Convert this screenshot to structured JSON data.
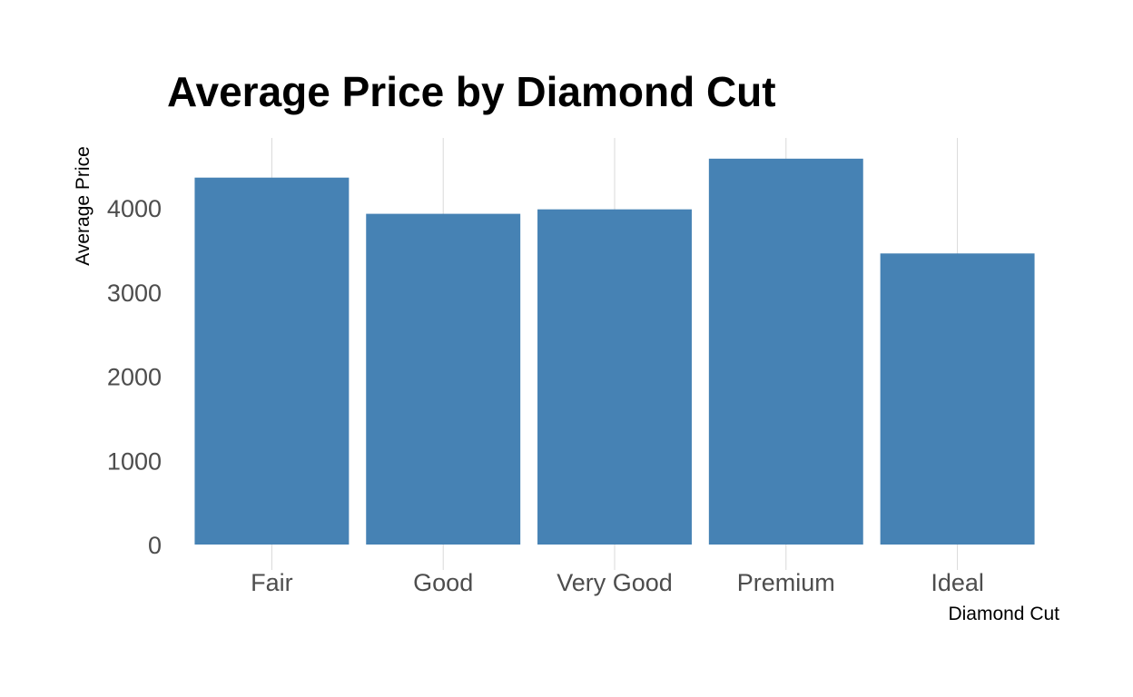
{
  "chart_data": {
    "type": "bar",
    "title": "Average Price by Diamond Cut",
    "xlabel": "Diamond Cut",
    "ylabel": "Average Price",
    "categories": [
      "Fair",
      "Good",
      "Very Good",
      "Premium",
      "Ideal"
    ],
    "values": [
      4359,
      3929,
      3982,
      4584,
      3458
    ],
    "yticks": [
      0,
      1000,
      2000,
      3000,
      4000
    ],
    "ylim": [
      0,
      4800
    ],
    "grid": "vertical-major",
    "legend": "none",
    "bar_color": "#4682B4"
  }
}
